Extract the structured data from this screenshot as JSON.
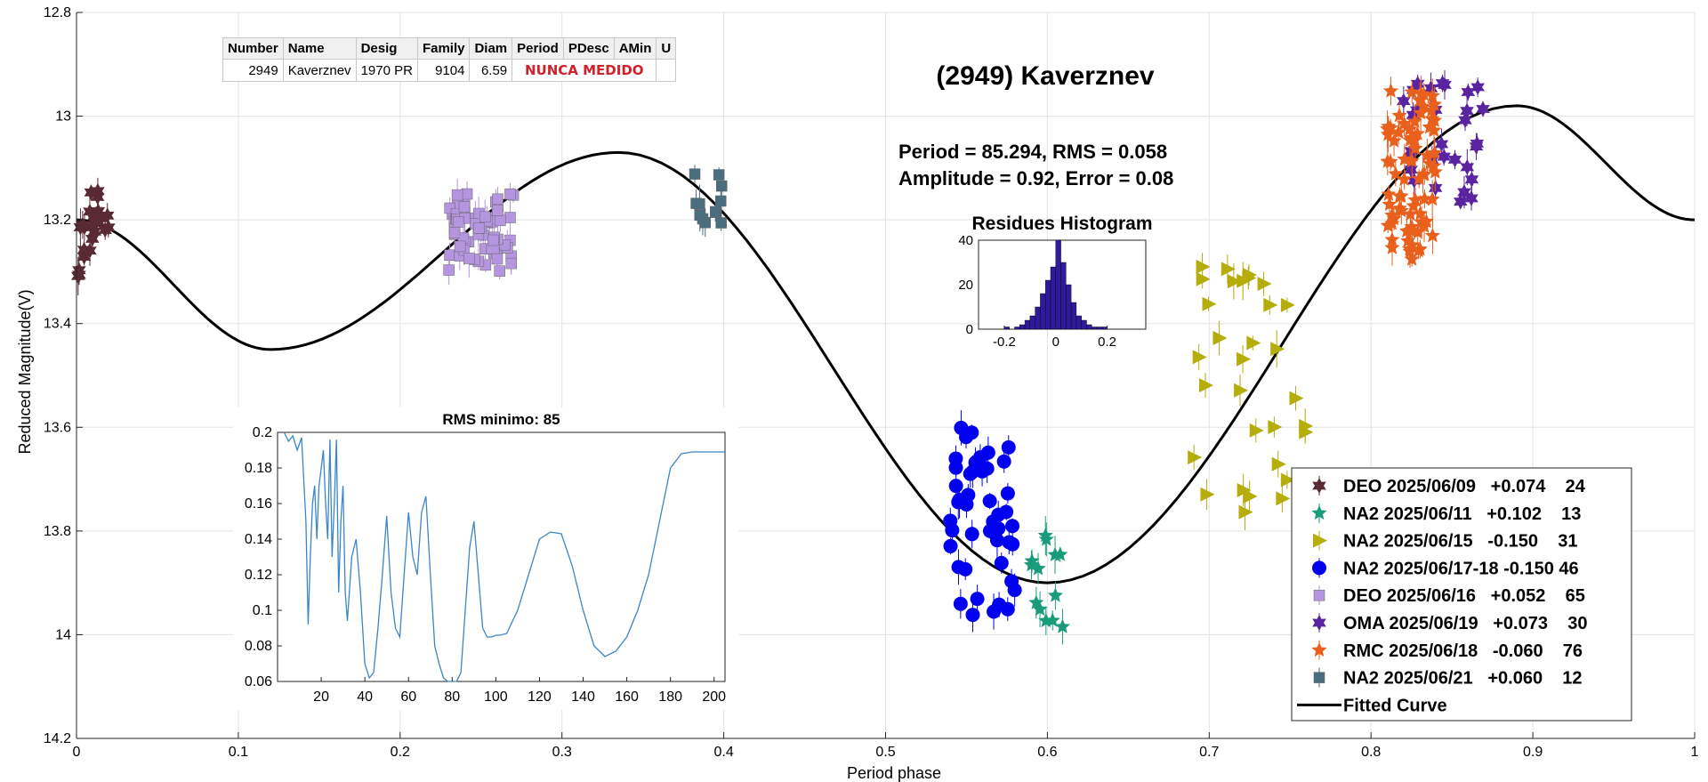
{
  "info_table": {
    "headers": [
      "Number",
      "Name",
      "Desig",
      "Family",
      "Diam",
      "Period",
      "PDesc",
      "AMin",
      "U"
    ],
    "row": {
      "number": "2949",
      "name": "Kaverznev",
      "desig": "1970 PR",
      "family": "9104",
      "diam": "6.59",
      "note": "NUNCA MEDIDO"
    }
  },
  "annotations": {
    "object": "(2949) Kaverznev",
    "period_line": "Period =  85.294, RMS = 0.058",
    "amp_line": "Amplitude = 0.92, Error = 0.08"
  },
  "chart_data": [
    {
      "type": "scatter",
      "title": "",
      "xlabel": "Period phase",
      "ylabel": "Reduced Magnitude(V)",
      "xlim": [
        0,
        1
      ],
      "ylim": [
        12.8,
        14.2
      ],
      "y_reversed": true,
      "grid": true,
      "x_ticks": [
        "0",
        "0.1",
        "0.2",
        "0.3",
        "0.4",
        "0.5",
        "0.6",
        "0.7",
        "0.8",
        "0.9",
        "1"
      ],
      "y_ticks": [
        "12.8",
        "13",
        "13.2",
        "13.4",
        "13.6",
        "13.8",
        "14",
        "14.2"
      ],
      "legend_position": "bottom-right",
      "series": [
        {
          "name": "DEO 2025/06/09   +0.074    24",
          "marker": "star6",
          "color": "#5a2a34",
          "x_range": [
            0.0,
            0.02
          ],
          "y_range": [
            13.13,
            13.32
          ]
        },
        {
          "name": "NA2 2025/06/11   +0.102    13",
          "marker": "star5",
          "color": "#1a9c7c",
          "x_range": [
            0.59,
            0.61
          ],
          "y_range": [
            13.79,
            14.0
          ]
        },
        {
          "name": "NA2 2025/06/15   -0.150    31",
          "marker": "triangle-right",
          "color": "#b5ad0a",
          "x_range": [
            0.69,
            0.76
          ],
          "y_range": [
            13.28,
            13.78
          ]
        },
        {
          "name": "NA2 2025/06/17-18 -0.150 46",
          "marker": "circle",
          "color": "#0000ee",
          "x_range": [
            0.54,
            0.58
          ],
          "y_range": [
            13.6,
            13.97
          ]
        },
        {
          "name": "DEO 2025/06/16   +0.052    65",
          "marker": "square",
          "color": "#b595e0",
          "x_range": [
            0.23,
            0.27
          ],
          "y_range": [
            13.15,
            13.3
          ]
        },
        {
          "name": "OMA 2025/06/19   +0.073    30",
          "marker": "star6",
          "color": "#5a23a0",
          "x_range": [
            0.82,
            0.87
          ],
          "y_range": [
            12.92,
            13.17
          ]
        },
        {
          "name": "RMC 2025/06/18   -0.060    76",
          "marker": "star5",
          "color": "#e8601c",
          "x_range": [
            0.81,
            0.84
          ],
          "y_range": [
            12.95,
            13.28
          ]
        },
        {
          "name": "NA2 2025/06/21   +0.060    12",
          "marker": "square",
          "color": "#4a6e80",
          "x_range": [
            0.38,
            0.4
          ],
          "y_range": [
            13.11,
            13.21
          ]
        },
        {
          "name": "Fitted Curve",
          "type": "line",
          "color": "#000000"
        }
      ],
      "fitted_curve": {
        "min_points": [
          {
            "x": 0.12,
            "y": 13.45
          },
          {
            "x": 0.6,
            "y": 13.9
          }
        ],
        "max_points": [
          {
            "x": 0.335,
            "y": 13.07
          },
          {
            "x": 0.89,
            "y": 12.98
          }
        ],
        "endpoints": [
          {
            "x": 0.0,
            "y": 13.2
          },
          {
            "x": 1.0,
            "y": 13.2
          }
        ]
      }
    },
    {
      "type": "line",
      "title": "RMS minimo: 85",
      "xlabel": "",
      "ylabel": "",
      "xlim": [
        0,
        205
      ],
      "ylim": [
        0.06,
        0.2
      ],
      "x_ticks": [
        "20",
        "40",
        "60",
        "80",
        "100",
        "120",
        "140",
        "160",
        "180",
        "200"
      ],
      "y_ticks": [
        "0.06",
        "0.08",
        "0.1",
        "0.12",
        "0.14",
        "0.16",
        "0.18",
        "0.2"
      ],
      "color": "#3a86c8",
      "x": [
        3,
        5,
        7,
        9,
        11,
        13,
        14,
        15,
        16,
        17,
        18,
        19,
        20,
        21,
        22,
        23,
        24,
        25,
        26,
        27,
        28,
        29,
        30,
        31,
        32,
        34,
        36,
        38,
        40,
        42,
        44,
        46,
        48,
        50,
        52,
        54,
        56,
        58,
        60,
        62,
        64,
        66,
        68,
        70,
        72,
        74,
        76,
        78,
        80,
        82,
        84,
        86,
        88,
        90,
        92,
        94,
        96,
        98,
        100,
        102,
        105,
        110,
        115,
        120,
        125,
        130,
        135,
        140,
        145,
        150,
        155,
        160,
        165,
        170,
        175,
        180,
        185,
        190,
        195,
        200,
        205
      ],
      "y": [
        0.2,
        0.195,
        0.198,
        0.19,
        0.197,
        0.15,
        0.092,
        0.13,
        0.16,
        0.17,
        0.14,
        0.17,
        0.18,
        0.19,
        0.16,
        0.14,
        0.196,
        0.13,
        0.16,
        0.196,
        0.11,
        0.15,
        0.17,
        0.11,
        0.094,
        0.13,
        0.14,
        0.11,
        0.07,
        0.062,
        0.065,
        0.09,
        0.12,
        0.153,
        0.11,
        0.09,
        0.085,
        0.12,
        0.155,
        0.13,
        0.12,
        0.155,
        0.164,
        0.12,
        0.08,
        0.07,
        0.062,
        0.06,
        0.06,
        0.06,
        0.065,
        0.1,
        0.135,
        0.15,
        0.12,
        0.09,
        0.085,
        0.085,
        0.086,
        0.086,
        0.087,
        0.1,
        0.12,
        0.14,
        0.144,
        0.143,
        0.125,
        0.1,
        0.08,
        0.074,
        0.077,
        0.085,
        0.1,
        0.12,
        0.15,
        0.18,
        0.188,
        0.189,
        0.189,
        0.189,
        0.189
      ]
    },
    {
      "type": "bar",
      "title": "Residues Histogram",
      "xlim": [
        -0.3,
        0.35
      ],
      "ylim": [
        0,
        40
      ],
      "x_ticks": [
        "-0.2",
        "0",
        "0.2"
      ],
      "y_ticks": [
        "0",
        "20",
        "40"
      ],
      "color": "#2e1a9a",
      "bin_width": 0.02,
      "bin_centers": [
        -0.19,
        -0.17,
        -0.15,
        -0.13,
        -0.11,
        -0.09,
        -0.07,
        -0.05,
        -0.03,
        -0.01,
        0.01,
        0.03,
        0.05,
        0.07,
        0.09,
        0.11,
        0.13,
        0.15,
        0.17,
        0.19
      ],
      "values": [
        1,
        0,
        1,
        2,
        4,
        6,
        10,
        16,
        22,
        28,
        40,
        30,
        20,
        12,
        6,
        4,
        2,
        1,
        1,
        1
      ]
    }
  ]
}
